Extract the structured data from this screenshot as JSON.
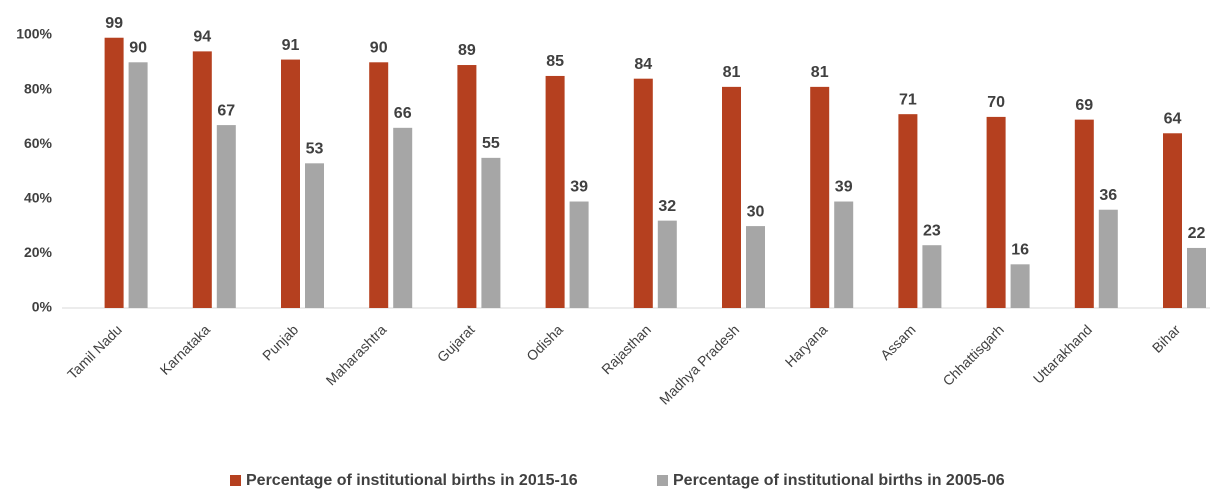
{
  "chart_data": {
    "type": "bar",
    "categories": [
      "Tamil Nadu",
      "Karnataka",
      "Punjab",
      "Maharashtra",
      "Gujarat",
      "Odisha",
      "Rajasthan",
      "Madhya Pradesh",
      "Haryana",
      "Assam",
      "Chhattisgarh",
      "Uttarakhand",
      "Bihar"
    ],
    "series": [
      {
        "name": "Percentage of institutional births in 2015-16",
        "color": "#b5401f",
        "values": [
          99,
          94,
          91,
          90,
          89,
          85,
          84,
          81,
          81,
          71,
          70,
          69,
          64
        ]
      },
      {
        "name": "Percentage of institutional births in 2005-06",
        "color": "#a6a6a6",
        "values": [
          90,
          67,
          53,
          66,
          55,
          39,
          32,
          30,
          39,
          23,
          16,
          36,
          22
        ]
      }
    ],
    "ylim": [
      0,
      100
    ],
    "yticks": [
      {
        "value": 0,
        "label": "0%"
      },
      {
        "value": 20,
        "label": "20%"
      },
      {
        "value": 40,
        "label": "40%"
      },
      {
        "value": 60,
        "label": "60%"
      },
      {
        "value": 80,
        "label": "80%"
      },
      {
        "value": 100,
        "label": "100%"
      }
    ],
    "grid": false,
    "legend": "bottom"
  }
}
